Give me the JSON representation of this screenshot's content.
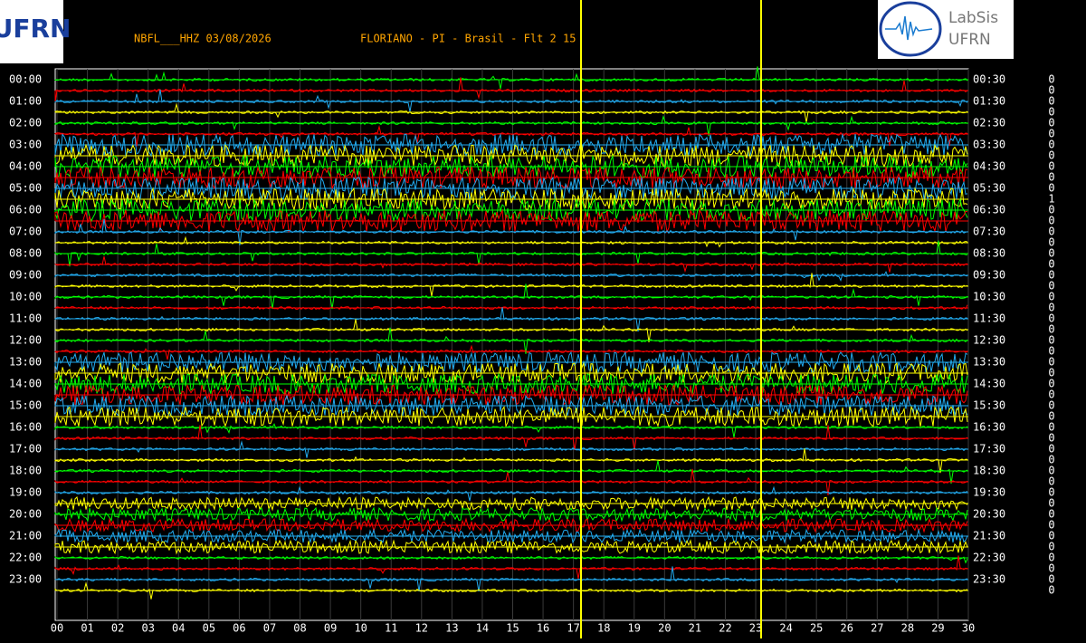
{
  "header": {
    "station": "NBFL___HHZ 03/08/2026",
    "location": "FLORIANO - PI - Brasil - Flt 2 15"
  },
  "logos": {
    "left": "UFRN",
    "right_top": "LabSis",
    "right_bottom": "UFRN"
  },
  "left_labels": [
    "00:00",
    "01:00",
    "02:00",
    "03:00",
    "04:00",
    "05:00",
    "06:00",
    "07:00",
    "08:00",
    "09:00",
    "10:00",
    "11:00",
    "12:00",
    "13:00",
    "14:00",
    "15:00",
    "16:00",
    "17:00",
    "18:00",
    "19:00",
    "20:00",
    "21:00",
    "22:00",
    "23:00"
  ],
  "right_labels": [
    "00:30",
    "01:30",
    "02:30",
    "03:30",
    "04:30",
    "05:30",
    "06:30",
    "07:30",
    "08:30",
    "09:30",
    "10:30",
    "11:30",
    "12:30",
    "13:30",
    "14:30",
    "15:30",
    "16:30",
    "17:30",
    "18:30",
    "19:30",
    "20:30",
    "21:30",
    "22:30",
    "23:30"
  ],
  "x_labels": [
    "00",
    "01",
    "02",
    "03",
    "04",
    "05",
    "06",
    "07",
    "08",
    "09",
    "10",
    "11",
    "12",
    "13",
    "14",
    "15",
    "16",
    "17",
    "18",
    "19",
    "20",
    "21",
    "22",
    "23",
    "24",
    "25",
    "26",
    "27",
    "28",
    "29",
    "30"
  ],
  "counts": [
    "0",
    "0",
    "0",
    "0",
    "0",
    "0",
    "0",
    "0",
    "0",
    "0",
    "0",
    "1",
    "0",
    "0",
    "0",
    "0",
    "0",
    "0",
    "0",
    "0",
    "0",
    "0",
    "0",
    "0",
    "0",
    "0",
    "0",
    "0",
    "0",
    "0",
    "0",
    "0",
    "0",
    "0",
    "0",
    "0",
    "0",
    "0",
    "0",
    "0",
    "0",
    "0",
    "0",
    "0",
    "0",
    "0",
    "0",
    "0"
  ]
}
